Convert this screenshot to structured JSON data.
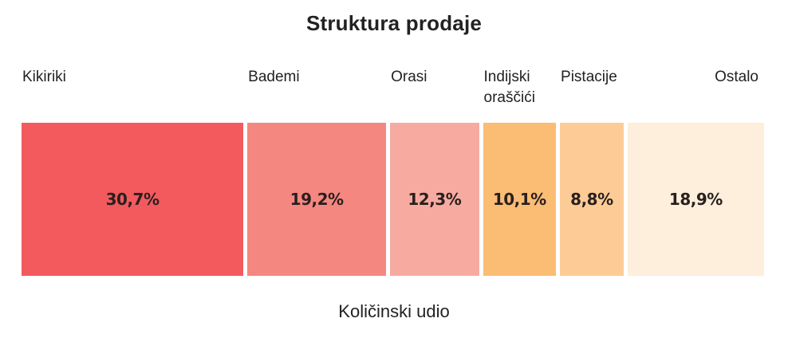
{
  "chart_data": {
    "type": "bar",
    "orientation": "stacked-horizontal",
    "title": "Struktura prodaje",
    "xlabel": "Količinski udio",
    "ylabel": "",
    "categories": [
      "Kikiriki",
      "Bademi",
      "Orasi",
      "Indijski\noraščići",
      "Pistacije",
      "Ostalo"
    ],
    "values": [
      30.7,
      19.2,
      12.3,
      10.1,
      8.8,
      18.9
    ],
    "value_labels": [
      "30,7%",
      "19,2%",
      "12,3%",
      "10,1%",
      "8,8%",
      "18,9%"
    ],
    "colors": [
      "#f25a5e",
      "#f4877f",
      "#f7aba0",
      "#fbbc74",
      "#fdcc96",
      "#fdefdc"
    ],
    "unit": "%",
    "legend": "none",
    "grid": false
  }
}
